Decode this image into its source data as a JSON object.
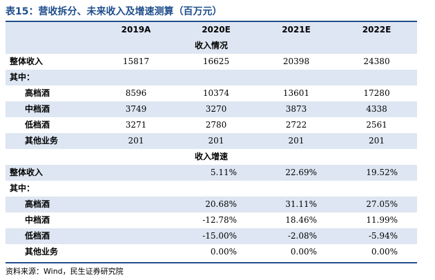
{
  "title": "表15：营收拆分、未来收入及增速测算（百万元）",
  "source": "资料来源：Wind，民生证券研究院",
  "chart_data": {
    "type": "table",
    "columns": [
      "",
      "2019A",
      "2020E",
      "2021E",
      "2022E"
    ],
    "sections": [
      {
        "header": "收入情况",
        "rows": [
          {
            "label": "整体收入",
            "values": [
              "15817",
              "16625",
              "20398",
              "24380"
            ]
          },
          {
            "label": "其中：",
            "values": [
              "",
              "",
              "",
              ""
            ]
          },
          {
            "label": "高档酒",
            "values": [
              "8596",
              "10374",
              "13601",
              "17280"
            ]
          },
          {
            "label": "中档酒",
            "values": [
              "3749",
              "3270",
              "3873",
              "4338"
            ]
          },
          {
            "label": "低档酒",
            "values": [
              "3271",
              "2780",
              "2722",
              "2561"
            ]
          },
          {
            "label": "其他业务",
            "values": [
              "201",
              "201",
              "201",
              "201"
            ]
          }
        ]
      },
      {
        "header": "收入增速",
        "rows": [
          {
            "label": "整体收入",
            "values": [
              "",
              "5.11%",
              "22.69%",
              "19.52%"
            ]
          },
          {
            "label": "其中：",
            "values": [
              "",
              "",
              "",
              ""
            ]
          },
          {
            "label": "高档酒",
            "values": [
              "",
              "20.68%",
              "31.11%",
              "27.05%"
            ]
          },
          {
            "label": "中档酒",
            "values": [
              "",
              "-12.78%",
              "18.46%",
              "11.99%"
            ]
          },
          {
            "label": "低档酒",
            "values": [
              "",
              "-15.00%",
              "-2.08%",
              "-5.94%"
            ]
          },
          {
            "label": "其他业务",
            "values": [
              "",
              "0.00%",
              "0.00%",
              "0.00%"
            ]
          }
        ]
      }
    ]
  }
}
